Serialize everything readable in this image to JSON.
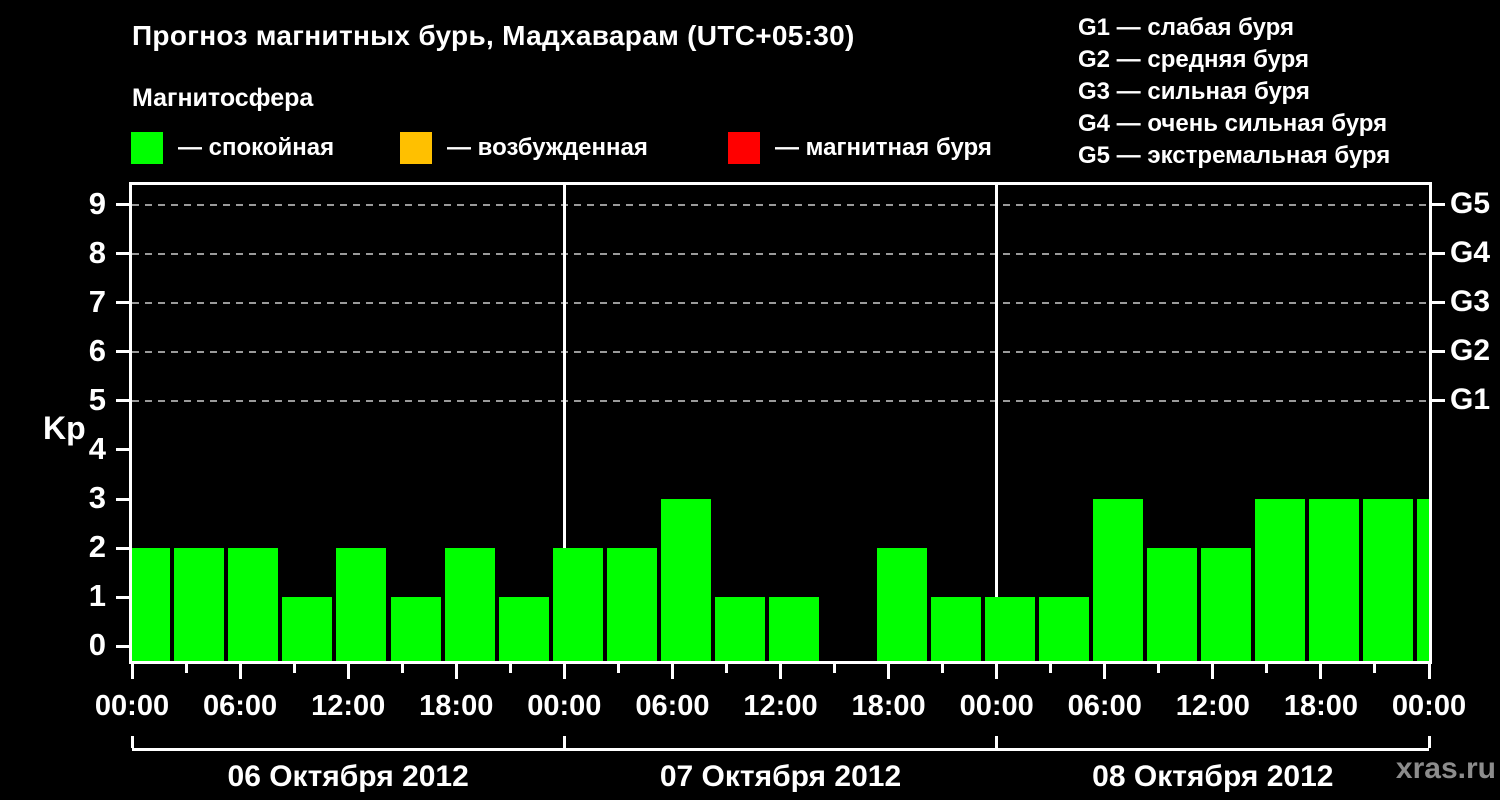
{
  "header": {
    "title": "Прогноз магнитных бурь, Мадхаварам (UTC+05:30)",
    "subtitle": "Магнитосфера"
  },
  "legend": [
    {
      "name": "quiet",
      "label": "— спокойная",
      "color": "#00ff00"
    },
    {
      "name": "excited",
      "label": "— возбужденная",
      "color": "#ffc000"
    },
    {
      "name": "storm",
      "label": "— магнитная буря",
      "color": "#ff0000"
    }
  ],
  "storm_scale": [
    "G1 — слабая буря",
    "G2 — средняя буря",
    "G3 — сильная буря",
    "G4 — очень сильная буря",
    "G5 — экстремальная буря"
  ],
  "watermark": "xras.ru",
  "chart_data": {
    "type": "bar",
    "ylabel": "Kp",
    "bar_color": "#00ff00",
    "grid_color": "#9a9a9a",
    "axis_color": "#ffffff",
    "ylim": [
      -0.3,
      9.4
    ],
    "y_ticks": [
      0,
      1,
      2,
      3,
      4,
      5,
      6,
      7,
      8,
      9
    ],
    "right_axis": [
      {
        "label": "G1",
        "kp": 5
      },
      {
        "label": "G2",
        "kp": 6
      },
      {
        "label": "G3",
        "kp": 7
      },
      {
        "label": "G4",
        "kp": 8
      },
      {
        "label": "G5",
        "kp": 9
      }
    ],
    "x_interval_hours": 3,
    "x_major_labels": [
      "00:00",
      "06:00",
      "12:00",
      "18:00",
      "00:00",
      "06:00",
      "12:00",
      "18:00",
      "00:00",
      "06:00",
      "12:00",
      "18:00",
      "00:00"
    ],
    "days": [
      {
        "date": "06 Октября 2012",
        "kp": [
          2,
          2,
          2,
          1,
          2,
          1,
          2,
          1
        ]
      },
      {
        "date": "07 Октября 2012",
        "kp": [
          2,
          2,
          3,
          1,
          1,
          null,
          2,
          1
        ]
      },
      {
        "date": "08 Октября 2012",
        "kp": [
          1,
          1,
          3,
          2,
          2,
          3,
          3,
          3
        ]
      }
    ],
    "partial_next_bar_kp": 3,
    "grid": true,
    "legend_position": "top"
  }
}
